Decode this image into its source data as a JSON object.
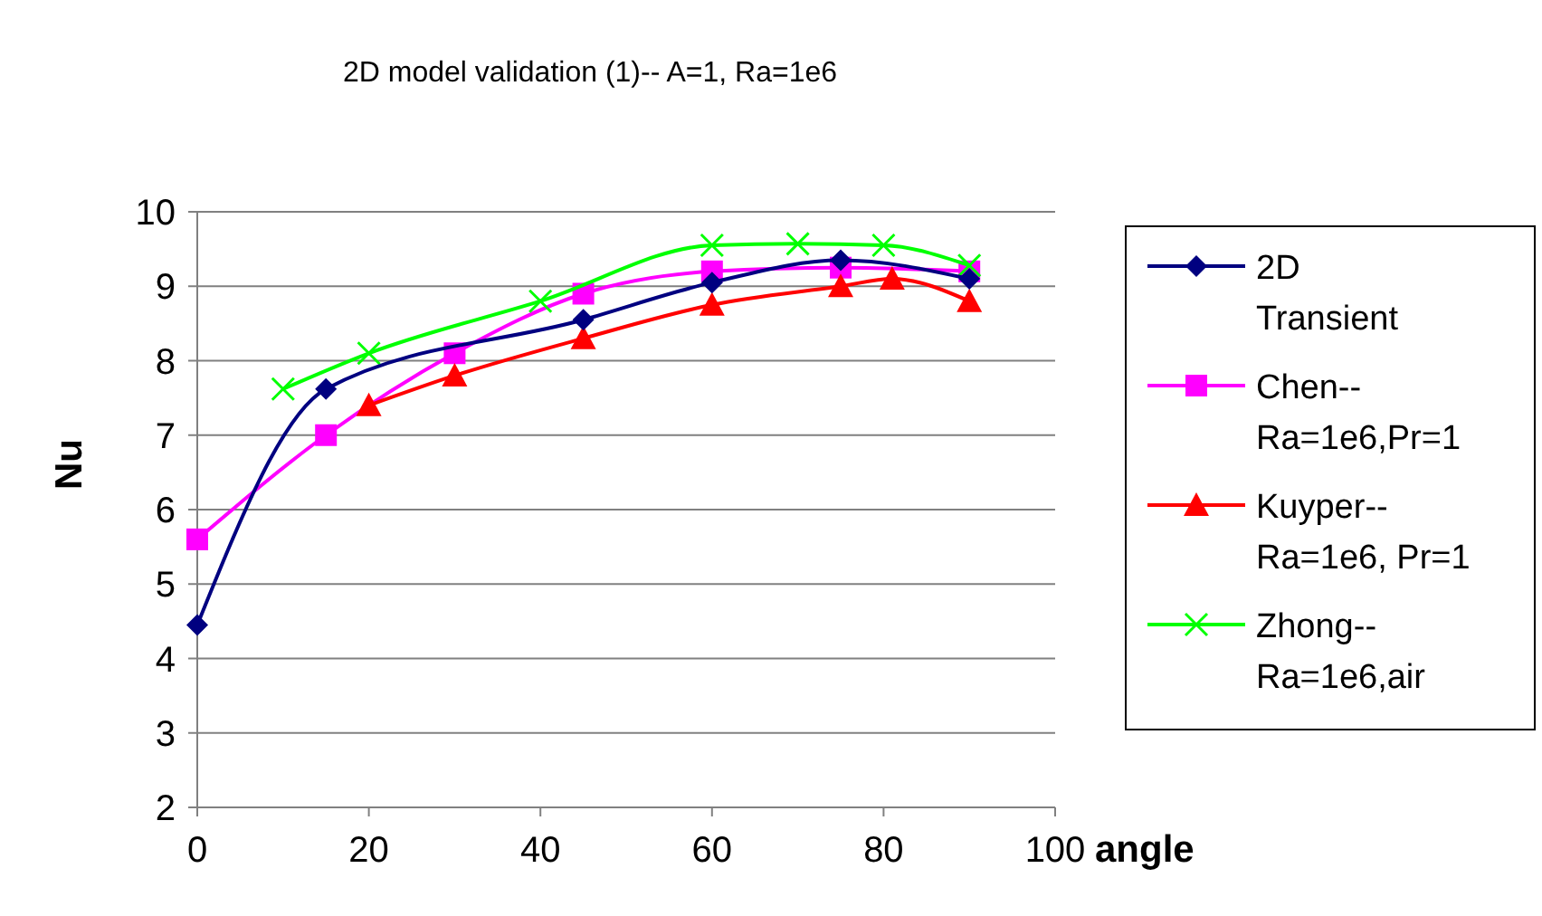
{
  "chart_data": {
    "type": "line",
    "title": "2D model validation (1)-- A=1, Ra=1e6",
    "xlabel": "angle",
    "ylabel": "Nu",
    "xlim": [
      0,
      100
    ],
    "xticks": [
      0,
      20,
      40,
      60,
      80,
      100
    ],
    "ylim": [
      2,
      10
    ],
    "yticks": [
      2,
      3,
      4,
      5,
      6,
      7,
      8,
      9,
      10
    ],
    "grid": "y",
    "legend": "right",
    "line_style": "solid",
    "series": [
      {
        "name": "2D Transient",
        "color": "#000080",
        "marker": "diamond",
        "x": [
          0,
          15,
          45,
          60,
          75,
          90
        ],
        "values": [
          4.45,
          7.62,
          8.55,
          9.05,
          9.35,
          9.1
        ]
      },
      {
        "name": "Chen--Ra=1e6,Pr=1",
        "color": "#ff00ff",
        "marker": "square",
        "x": [
          0,
          15,
          30,
          45,
          60,
          75,
          90
        ],
        "values": [
          5.6,
          7.0,
          8.1,
          8.9,
          9.2,
          9.25,
          9.2
        ]
      },
      {
        "name": "Kuyper--Ra=1e6, Pr=1",
        "color": "#ff0000",
        "marker": "triangle",
        "x": [
          20,
          30,
          45,
          60,
          75,
          81,
          90
        ],
        "values": [
          7.4,
          7.8,
          8.3,
          8.75,
          9.0,
          9.1,
          8.8
        ]
      },
      {
        "name": "Zhong--Ra=1e6,air",
        "color": "#00ff00",
        "marker": "cross",
        "x": [
          10,
          20,
          40,
          60,
          70,
          80,
          90
        ],
        "values": [
          7.62,
          8.1,
          8.8,
          9.55,
          9.57,
          9.55,
          9.28
        ]
      }
    ]
  }
}
